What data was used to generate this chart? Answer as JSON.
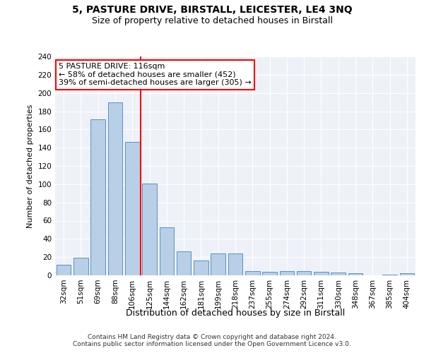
{
  "title": "5, PASTURE DRIVE, BIRSTALL, LEICESTER, LE4 3NQ",
  "subtitle": "Size of property relative to detached houses in Birstall",
  "xlabel": "Distribution of detached houses by size in Birstall",
  "ylabel": "Number of detached properties",
  "categories": [
    "32sqm",
    "51sqm",
    "69sqm",
    "88sqm",
    "106sqm",
    "125sqm",
    "144sqm",
    "162sqm",
    "181sqm",
    "199sqm",
    "218sqm",
    "237sqm",
    "255sqm",
    "274sqm",
    "292sqm",
    "311sqm",
    "330sqm",
    "348sqm",
    "367sqm",
    "385sqm",
    "404sqm"
  ],
  "values": [
    12,
    19,
    171,
    190,
    146,
    101,
    53,
    26,
    16,
    24,
    24,
    5,
    4,
    5,
    5,
    4,
    3,
    2,
    0,
    1,
    2
  ],
  "bar_color": "#b8cfe8",
  "bar_edge_color": "#5b8ec4",
  "vline_index": 4,
  "annotation_line1": "5 PASTURE DRIVE: 116sqm",
  "annotation_line2": "← 58% of detached houses are smaller (452)",
  "annotation_line3": "39% of semi-detached houses are larger (305) →",
  "annotation_box_facecolor": "white",
  "annotation_box_edgecolor": "red",
  "vline_color": "red",
  "ylim": [
    0,
    240
  ],
  "yticks": [
    0,
    20,
    40,
    60,
    80,
    100,
    120,
    140,
    160,
    180,
    200,
    220,
    240
  ],
  "bg_color": "#eef2f8",
  "grid_color": "#ffffff",
  "footer_text": "Contains HM Land Registry data © Crown copyright and database right 2024.\nContains public sector information licensed under the Open Government Licence v3.0.",
  "title_fontsize": 10,
  "subtitle_fontsize": 9,
  "xlabel_fontsize": 9,
  "ylabel_fontsize": 8,
  "tick_fontsize": 7.5,
  "annotation_fontsize": 8,
  "footer_fontsize": 6.5
}
